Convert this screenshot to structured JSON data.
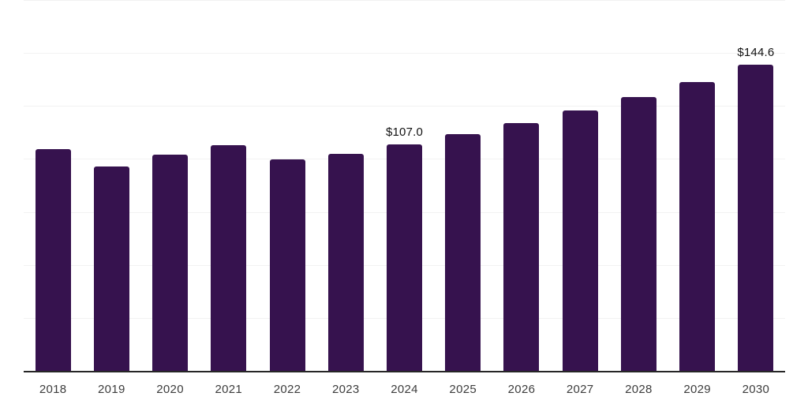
{
  "chart_data": {
    "type": "bar",
    "title": "",
    "xlabel": "",
    "ylabel": "",
    "categories": [
      "2018",
      "2019",
      "2020",
      "2021",
      "2022",
      "2023",
      "2024",
      "2025",
      "2026",
      "2027",
      "2028",
      "2029",
      "2030"
    ],
    "values": [
      104.6,
      96.5,
      102.0,
      106.4,
      99.7,
      102.4,
      107.0,
      111.8,
      116.8,
      122.7,
      129.3,
      136.1,
      144.6
    ],
    "data_labels": [
      "",
      "",
      "",
      "",
      "",
      "",
      "$107.0",
      "",
      "",
      "",
      "",
      "",
      "$144.6"
    ],
    "ylim": [
      0,
      175
    ],
    "gridline_step": 25,
    "grid": true,
    "legend": false,
    "y_tick_labels_visible": false,
    "colors": {
      "bar": "#36124E",
      "gridline": "#f2f2f2",
      "axis_line": "#262626",
      "tick_label": "#3d3d3d",
      "value_label": "#111111",
      "background": "#ffffff"
    }
  }
}
